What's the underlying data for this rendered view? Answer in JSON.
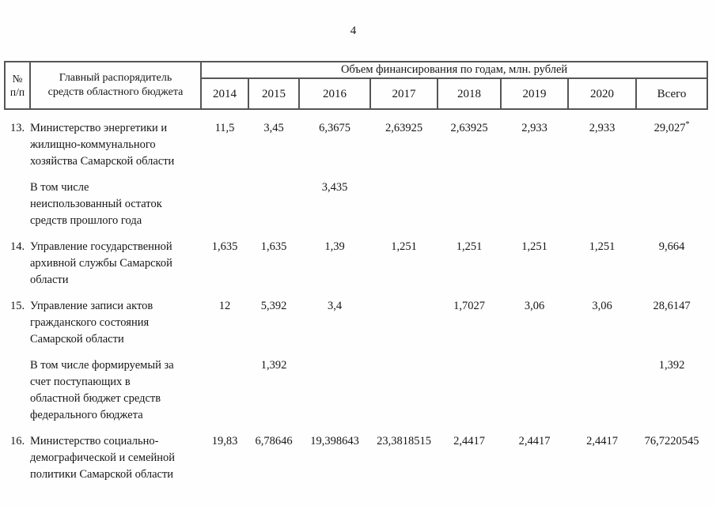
{
  "page": {
    "number": "4"
  },
  "table": {
    "header": {
      "num_label": "№\nп/п",
      "name_label": "Главный распорядитель\nсредств областного бюджета",
      "group_label": "Объем финансирования по годам, млн. рублей",
      "years": [
        "2014",
        "2015",
        "2016",
        "2017",
        "2018",
        "2019",
        "2020",
        "Всего"
      ]
    },
    "rows": [
      {
        "num": "13.",
        "name": "Министерство энергетики и\nжилищно-коммунального\nхозяйства Самарской области",
        "values": [
          "11,5",
          "3,45",
          "6,3675",
          "2,63925",
          "2,63925",
          "2,933",
          "2,933",
          "29,027"
        ],
        "sups": {
          "7": "*"
        }
      },
      {
        "num": "",
        "name": "В том числе\nнеиспользованный остаток\nсредств прошлого года",
        "values": [
          "",
          "",
          "3,435",
          "",
          "",
          "",
          "",
          ""
        ]
      },
      {
        "num": "14.",
        "name": "Управление государственной\nархивной службы Самарской\nобласти",
        "values": [
          "1,635",
          "1,635",
          "1,39",
          "1,251",
          "1,251",
          "1,251",
          "1,251",
          "9,664"
        ]
      },
      {
        "num": "15.",
        "name": "Управление записи актов\nгражданского состояния\nСамарской области",
        "values": [
          "12",
          "5,392",
          "3,4",
          "",
          "1,7027",
          "3,06",
          "3,06",
          "28,6147"
        ]
      },
      {
        "num": "",
        "name": "В том числе формируемый за\nсчет поступающих в\nобластной бюджет средств\nфедерального бюджета",
        "values": [
          "",
          "1,392",
          "",
          "",
          "",
          "",
          "",
          "1,392"
        ]
      },
      {
        "num": "16.",
        "name": "Министерство социально-\nдемографической и семейной\nполитики Самарской области",
        "values": [
          "19,83",
          "6,78646",
          "19,398643",
          "23,3818515",
          "2,4417",
          "2,4417",
          "2,4417",
          "76,7220545"
        ]
      }
    ]
  }
}
